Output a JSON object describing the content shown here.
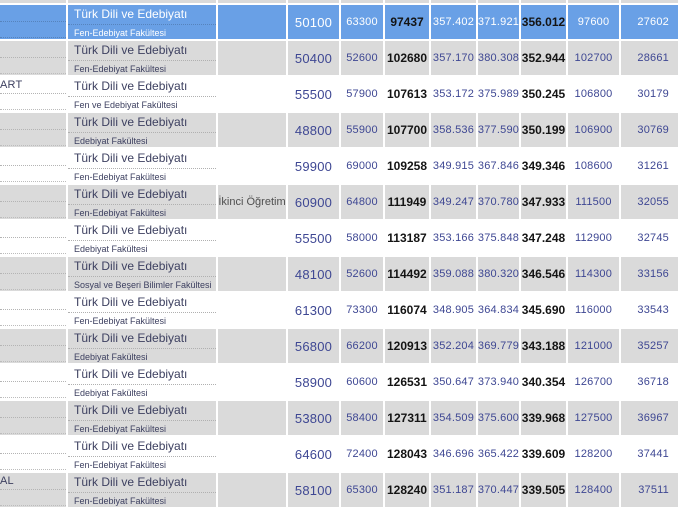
{
  "colors": {
    "selected_row_bg": "#69a0e6",
    "alt_row_bg": "#dadada",
    "text_color": "#3d4060",
    "number_color": "#3e4793",
    "bold_number_color": "#141414"
  },
  "table": {
    "selected_row_index": 0,
    "rows": [
      {
        "university": "",
        "program": "Türk Dili ve Edebiyatı",
        "faculty": "Fen-Edebiyat Fakültesi",
        "note": "",
        "values": [
          "50100",
          "63300",
          "97437",
          "357.402",
          "371.921",
          "356.012",
          "97600",
          "27602"
        ]
      },
      {
        "university": "",
        "program": "Türk Dili ve Edebiyatı",
        "faculty": "Fen-Edebiyat Fakültesi",
        "note": "",
        "values": [
          "50400",
          "52600",
          "102680",
          "357.170",
          "380.308",
          "352.944",
          "102700",
          "28661"
        ]
      },
      {
        "university": "ART",
        "program": "Türk Dili ve Edebiyatı",
        "faculty": "Fen ve Edebiyat Fakültesi",
        "note": "",
        "values": [
          "55500",
          "57900",
          "107613",
          "353.172",
          "375.989",
          "350.245",
          "106800",
          "30179"
        ]
      },
      {
        "university": "",
        "program": "Türk Dili ve Edebiyatı",
        "faculty": "Edebiyat Fakültesi",
        "note": "",
        "values": [
          "48800",
          "55900",
          "107700",
          "358.536",
          "377.590",
          "350.199",
          "106900",
          "30769"
        ]
      },
      {
        "university": "",
        "program": "Türk Dili ve Edebiyatı",
        "faculty": "Fen-Edebiyat Fakültesi",
        "note": "",
        "values": [
          "59900",
          "69000",
          "109258",
          "349.915",
          "367.846",
          "349.346",
          "108600",
          "31261"
        ]
      },
      {
        "university": "",
        "program": "Türk Dili ve Edebiyatı",
        "faculty": "Fen-Edebiyat Fakültesi",
        "note": "İkinci Öğretim",
        "values": [
          "60900",
          "64800",
          "111949",
          "349.247",
          "370.780",
          "347.933",
          "111500",
          "32055"
        ]
      },
      {
        "university": "",
        "program": "Türk Dili ve Edebiyatı",
        "faculty": "Edebiyat Fakültesi",
        "note": "",
        "values": [
          "55500",
          "58000",
          "113187",
          "353.166",
          "375.848",
          "347.248",
          "112900",
          "32745"
        ]
      },
      {
        "university": "",
        "program": "Türk Dili ve Edebiyatı",
        "faculty": "Sosyal ve Beşeri Bilimler Fakültesi",
        "note": "",
        "values": [
          "48100",
          "52600",
          "114492",
          "359.088",
          "380.320",
          "346.546",
          "114300",
          "33156"
        ]
      },
      {
        "university": "",
        "program": "Türk Dili ve Edebiyatı",
        "faculty": "Fen-Edebiyat Fakültesi",
        "note": "",
        "values": [
          "61300",
          "73300",
          "116074",
          "348.905",
          "364.834",
          "345.690",
          "116000",
          "33543"
        ]
      },
      {
        "university": "",
        "program": "Türk Dili ve Edebiyatı",
        "faculty": "Edebiyat Fakültesi",
        "note": "",
        "values": [
          "56800",
          "66200",
          "120913",
          "352.204",
          "369.779",
          "343.188",
          "121000",
          "35257"
        ]
      },
      {
        "university": "",
        "program": "Türk Dili ve Edebiyatı",
        "faculty": "Edebiyat Fakültesi",
        "note": "",
        "values": [
          "58900",
          "60600",
          "126531",
          "350.647",
          "373.940",
          "340.354",
          "126700",
          "36718"
        ]
      },
      {
        "university": "",
        "program": "Türk Dili ve Edebiyatı",
        "faculty": "Fen-Edebiyat Fakültesi",
        "note": "",
        "values": [
          "53800",
          "58400",
          "127311",
          "354.509",
          "375.600",
          "339.968",
          "127500",
          "36967"
        ]
      },
      {
        "university": "",
        "program": "Türk Dili ve Edebiyatı",
        "faculty": "Fen-Edebiyat Fakültesi",
        "note": "",
        "values": [
          "64600",
          "72400",
          "128043",
          "346.696",
          "365.422",
          "339.609",
          "128200",
          "37441"
        ]
      },
      {
        "university": "AL",
        "program": "Türk Dili ve Edebiyatı",
        "faculty": "Fen-Edebiyat Fakültesi",
        "note": "",
        "values": [
          "58100",
          "65300",
          "128240",
          "351.187",
          "370.447",
          "339.505",
          "128400",
          "37511"
        ]
      }
    ]
  }
}
